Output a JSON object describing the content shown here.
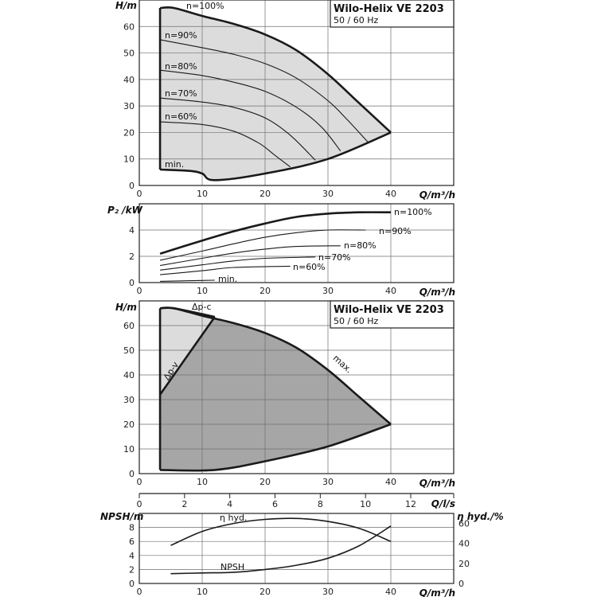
{
  "chart_data": [
    {
      "type": "line",
      "title": "Wilo-Helix VE 2203",
      "subtitle": "50 / 60 Hz",
      "xlabel": "Q/m³/h",
      "ylabel": "H/m",
      "xlim": [
        0,
        50
      ],
      "ylim": [
        0,
        70
      ],
      "xticks": [
        0,
        10,
        20,
        30,
        40
      ],
      "yticks": [
        0,
        10,
        20,
        30,
        40,
        50,
        60
      ],
      "grid": true,
      "series": [
        {
          "name": "n=100%",
          "x": [
            3.3,
            5.5,
            10,
            15,
            20,
            25,
            30,
            35,
            40
          ],
          "y": [
            67,
            67,
            64,
            61,
            57,
            51,
            42,
            31,
            20
          ]
        },
        {
          "name": "n=90%",
          "x": [
            3.3,
            10,
            15,
            20,
            25,
            30,
            33,
            36.5
          ],
          "y": [
            55,
            52,
            49.5,
            46,
            40.5,
            32,
            25,
            16
          ]
        },
        {
          "name": "n=80%",
          "x": [
            3.3,
            10,
            15,
            20,
            25,
            29,
            32
          ],
          "y": [
            43.5,
            41.5,
            39,
            35.5,
            29.5,
            22,
            13
          ]
        },
        {
          "name": "n=70%",
          "x": [
            3.3,
            10,
            15,
            20,
            24,
            28
          ],
          "y": [
            33,
            31.5,
            29.5,
            25.5,
            19,
            9.5
          ]
        },
        {
          "name": "n=60%",
          "x": [
            3.3,
            10,
            15,
            19,
            21.5,
            24
          ],
          "y": [
            24,
            23,
            20.5,
            16,
            11.5,
            7
          ]
        },
        {
          "name": "min.",
          "x": [
            3.3,
            8,
            10,
            12,
            20,
            30,
            40
          ],
          "y": [
            6,
            5.5,
            4.5,
            2,
            4.5,
            10,
            20
          ]
        }
      ]
    },
    {
      "type": "line",
      "xlabel": "Q/m³/h",
      "ylabel": "P2 /kW",
      "xlim": [
        0,
        50
      ],
      "ylim": [
        0,
        6
      ],
      "xticks": [
        0,
        10,
        20,
        30,
        40
      ],
      "yticks": [
        0,
        2,
        4
      ],
      "grid": true,
      "series": [
        {
          "name": "n=100%",
          "x": [
            3.3,
            10,
            15,
            20,
            25,
            30,
            35,
            40
          ],
          "y": [
            2.2,
            3.2,
            3.9,
            4.5,
            5.0,
            5.25,
            5.35,
            5.35
          ]
        },
        {
          "name": "n=90%",
          "x": [
            3.3,
            10,
            15,
            20,
            25,
            30,
            36
          ],
          "y": [
            1.7,
            2.4,
            2.95,
            3.45,
            3.8,
            4.0,
            4.0
          ]
        },
        {
          "name": "n=80%",
          "x": [
            3.3,
            10,
            15,
            20,
            25,
            32
          ],
          "y": [
            1.3,
            1.85,
            2.25,
            2.55,
            2.75,
            2.8
          ]
        },
        {
          "name": "n=70%",
          "x": [
            3.3,
            10,
            15,
            20,
            28
          ],
          "y": [
            0.95,
            1.35,
            1.65,
            1.85,
            1.95
          ]
        },
        {
          "name": "n=60%",
          "x": [
            3.3,
            10,
            15,
            24
          ],
          "y": [
            0.6,
            0.9,
            1.15,
            1.25
          ]
        },
        {
          "name": "min.",
          "x": [
            3.3,
            12
          ],
          "y": [
            0.1,
            0.18
          ]
        }
      ]
    },
    {
      "type": "area",
      "title": "Wilo-Helix VE 2203",
      "subtitle": "50 / 60 Hz",
      "xlabel": "Q/m³/h",
      "ylabel": "H/m",
      "xlim": [
        0,
        50
      ],
      "ylim": [
        0,
        70
      ],
      "xticks": [
        0,
        10,
        20,
        30,
        40
      ],
      "yticks": [
        0,
        10,
        20,
        30,
        40,
        50,
        60
      ],
      "grid": true,
      "annotations": [
        "Δp-c",
        "Δp-v",
        "max."
      ],
      "series": [
        {
          "name": "max.",
          "x": [
            3.3,
            5.5,
            10,
            15,
            20,
            25,
            30,
            35,
            40
          ],
          "y": [
            67,
            67,
            64,
            61,
            57,
            51,
            42,
            31,
            20
          ]
        },
        {
          "name": "Δp-c",
          "x": [
            3.3,
            5.5,
            12
          ],
          "y": [
            67,
            67,
            63.5
          ]
        },
        {
          "name": "Δp-v",
          "x": [
            3.3,
            12
          ],
          "y": [
            32,
            63.5
          ]
        },
        {
          "name": "min.",
          "x": [
            3.3,
            12,
            20,
            30,
            40
          ],
          "y": [
            1.5,
            1.5,
            5,
            11,
            20
          ]
        }
      ]
    },
    {
      "type": "line",
      "xlabel": "Q/l/s",
      "xlim": [
        0,
        13.9
      ],
      "xticks": [
        0,
        2,
        4,
        6,
        8,
        10,
        12
      ],
      "series": []
    },
    {
      "type": "line",
      "xlabel": "Q/m³/h",
      "ylabel": "NPSH/m",
      "y2label": "η hyd./%",
      "xlim": [
        0,
        50
      ],
      "ylim": [
        0,
        10
      ],
      "y2lim": [
        0,
        70
      ],
      "xticks": [
        0,
        10,
        20,
        30,
        40
      ],
      "yticks": [
        0,
        2,
        4,
        6,
        8
      ],
      "y2ticks": [
        0,
        20,
        40,
        60
      ],
      "grid": true,
      "series": [
        {
          "name": "η hyd.",
          "axis": "right",
          "x": [
            5,
            10,
            15,
            20,
            25,
            30,
            35,
            40
          ],
          "y": [
            38,
            52,
            60,
            64,
            65,
            62,
            55,
            42
          ]
        },
        {
          "name": "NPSH",
          "axis": "left",
          "x": [
            5,
            10,
            15,
            20,
            25,
            30,
            35,
            40
          ],
          "y": [
            1.4,
            1.5,
            1.6,
            2.0,
            2.6,
            3.6,
            5.4,
            8.2
          ]
        }
      ]
    }
  ]
}
